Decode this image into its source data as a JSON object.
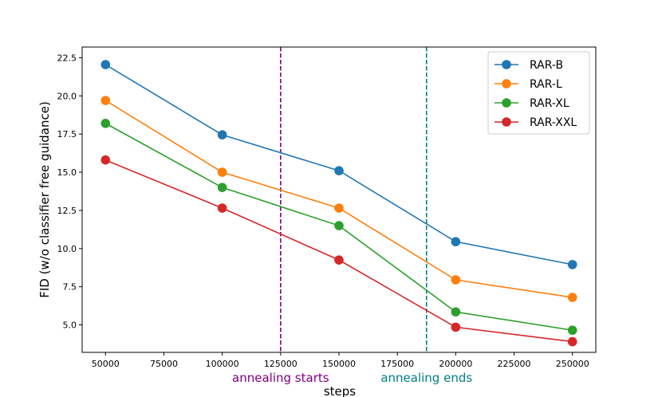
{
  "chart_data": {
    "type": "line",
    "title": "",
    "xlabel": "steps",
    "ylabel": "FID (w/o classifier free guidance)",
    "x": [
      50000,
      100000,
      150000,
      200000,
      250000
    ],
    "xlim": [
      40000,
      260000
    ],
    "ylim": [
      3.2,
      23.2
    ],
    "xticks": [
      50000,
      75000,
      100000,
      125000,
      150000,
      175000,
      200000,
      225000,
      250000
    ],
    "yticks": [
      5.0,
      7.5,
      10.0,
      12.5,
      15.0,
      17.5,
      20.0,
      22.5
    ],
    "ytick_labels": [
      "5.0",
      "7.5",
      "10.0",
      "12.5",
      "15.0",
      "17.5",
      "20.0",
      "22.5"
    ],
    "grid": false,
    "legend_position": "top-right",
    "series": [
      {
        "name": "RAR-B",
        "color": "#1f77b4",
        "values": [
          22.05,
          17.45,
          15.1,
          10.45,
          8.95
        ]
      },
      {
        "name": "RAR-L",
        "color": "#ff7f0e",
        "values": [
          19.7,
          15.0,
          12.65,
          7.95,
          6.8
        ]
      },
      {
        "name": "RAR-XL",
        "color": "#2ca02c",
        "values": [
          18.2,
          14.0,
          11.5,
          5.85,
          4.65
        ]
      },
      {
        "name": "RAR-XXL",
        "color": "#d62728",
        "values": [
          15.8,
          12.65,
          9.25,
          4.85,
          3.9
        ]
      }
    ],
    "vlines": [
      {
        "x": 125000,
        "label": "annealing starts",
        "color": "#800080"
      },
      {
        "x": 187500,
        "label": "annealing ends",
        "color": "#008080"
      }
    ]
  }
}
